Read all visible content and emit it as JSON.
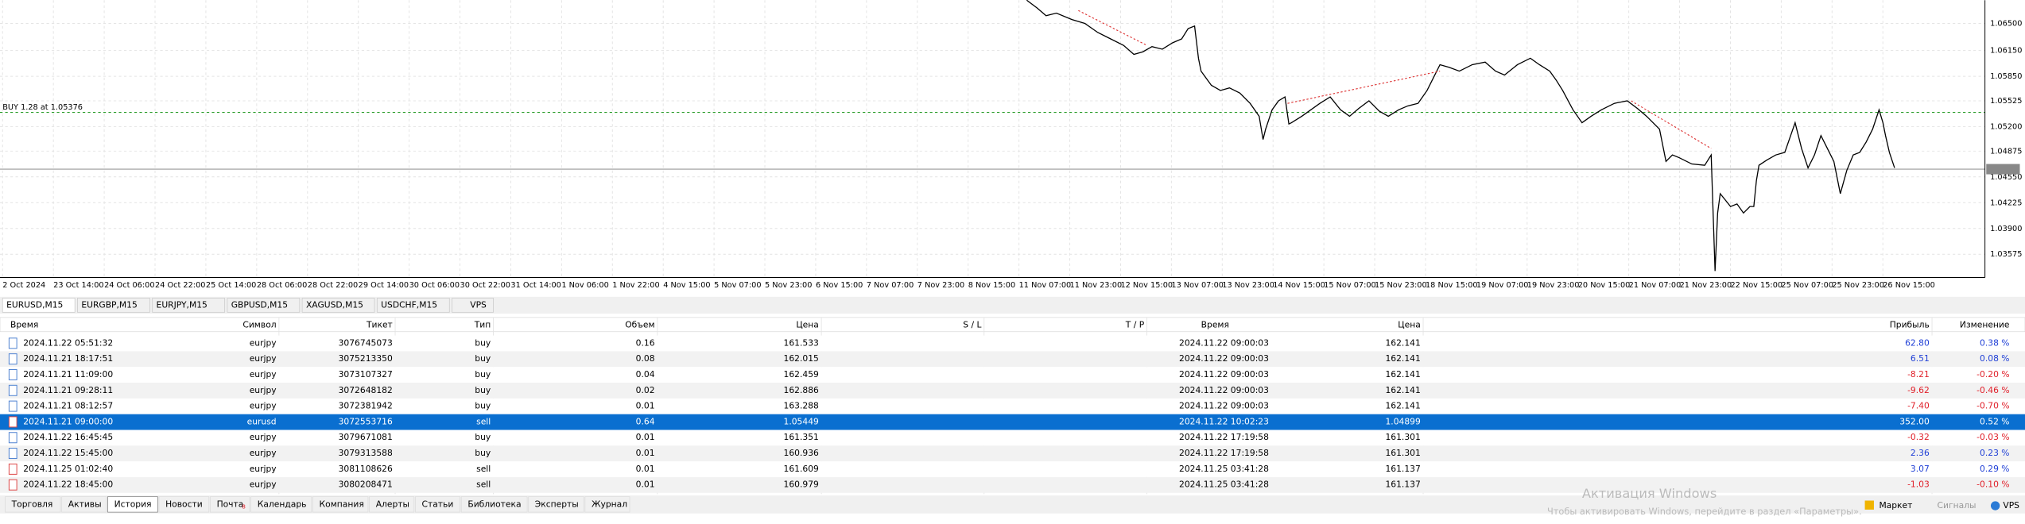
{
  "chart": {
    "info": "BUY 1.28 at 1.05376",
    "price_labels": [
      "1.06500",
      "1.06150",
      "1.05850",
      "1.05525",
      "1.05200",
      "1.04875",
      "1.04550",
      "1.04225",
      "1.03900",
      "1.03575"
    ],
    "time_labels": [
      "2 Oct 2024",
      "23 Oct 14:00",
      "24 Oct 06:00",
      "24 Oct 22:00",
      "25 Oct 14:00",
      "28 Oct 06:00",
      "28 Oct 22:00",
      "29 Oct 14:00",
      "30 Oct 06:00",
      "30 Oct 22:00",
      "31 Oct 14:00",
      "1 Nov 06:00",
      "1 Nov 22:00",
      "4 Nov 15:00",
      "5 Nov 07:00",
      "5 Nov 23:00",
      "6 Nov 15:00",
      "7 Nov 07:00",
      "7 Nov 23:00",
      "8 Nov 15:00",
      "11 Nov 07:00",
      "11 Nov 23:00",
      "12 Nov 15:00",
      "13 Nov 07:00",
      "13 Nov 23:00",
      "14 Nov 15:00",
      "15 Nov 07:00",
      "15 Nov 23:00",
      "18 Nov 15:00",
      "19 Nov 07:00",
      "19 Nov 23:00",
      "20 Nov 15:00",
      "21 Nov 07:00",
      "21 Nov 23:00",
      "22 Nov 15:00",
      "25 Nov 07:00",
      "25 Nov 23:00",
      "26 Nov 15:00"
    ]
  },
  "chart_tabs": [
    "EURUSD,M15",
    "EURGBP,M15",
    "EURJPY,M15",
    "GBPUSD,M15",
    "XAGUSD,M15",
    "USDCHF,M15",
    "VPS"
  ],
  "table": {
    "headers": [
      "Время",
      "Символ",
      "Тикет",
      "Тип",
      "Объем",
      "Цена",
      "S / L",
      "T / P",
      "Время",
      "Цена",
      "Прибыль",
      "Изменение"
    ],
    "rows": [
      [
        "2024.11.22 05:51:32",
        "eurjpy",
        "3076745073",
        "buy",
        "0.16",
        "161.533",
        "2024.11.22 09:00:03",
        "162.141",
        "62.80",
        "0.38 %"
      ],
      [
        "2024.11.21 18:17:51",
        "eurjpy",
        "3075213350",
        "buy",
        "0.08",
        "162.015",
        "2024.11.22 09:00:03",
        "162.141",
        "6.51",
        "0.08 %"
      ],
      [
        "2024.11.21 11:09:00",
        "eurjpy",
        "3073107327",
        "buy",
        "0.04",
        "162.459",
        "2024.11.22 09:00:03",
        "162.141",
        "-8.21",
        "-0.20 %"
      ],
      [
        "2024.11.21 09:28:11",
        "eurjpy",
        "3072648182",
        "buy",
        "0.02",
        "162.886",
        "2024.11.22 09:00:03",
        "162.141",
        "-9.62",
        "-0.46 %"
      ],
      [
        "2024.11.21 08:12:57",
        "eurjpy",
        "3072381942",
        "buy",
        "0.01",
        "163.288",
        "2024.11.22 09:00:03",
        "162.141",
        "-7.40",
        "-0.70 %"
      ],
      [
        "2024.11.21 09:00:00",
        "eurusd",
        "3072553716",
        "sell",
        "0.64",
        "1.05449",
        "2024.11.22 10:02:23",
        "1.04899",
        "352.00",
        "0.52 %"
      ],
      [
        "2024.11.22 16:45:45",
        "eurjpy",
        "3079671081",
        "buy",
        "0.01",
        "161.351",
        "2024.11.22 17:19:58",
        "161.301",
        "-0.32",
        "-0.03 %"
      ],
      [
        "2024.11.22 15:45:00",
        "eurjpy",
        "3079313588",
        "buy",
        "0.01",
        "160.936",
        "2024.11.22 17:19:58",
        "161.301",
        "2.36",
        "0.23 %"
      ],
      [
        "2024.11.25 01:02:40",
        "eurjpy",
        "3081108626",
        "sell",
        "0.01",
        "161.609",
        "2024.11.25 03:41:28",
        "161.137",
        "3.07",
        "0.29 %"
      ],
      [
        "2024.11.22 18:45:00",
        "eurjpy",
        "3080208471",
        "sell",
        "0.01",
        "160.979",
        "2024.11.25 03:41:28",
        "161.137",
        "-1.03",
        "-0.10 %"
      ]
    ]
  },
  "bottom_tabs": [
    "Торговля",
    "Активы",
    "История",
    "Новости",
    "Почта",
    "Календарь",
    "Компания",
    "Алерты",
    "Статьи",
    "Библиотека",
    "Эксперты",
    "Журнал"
  ],
  "mail_badge": "8",
  "status": {
    "market": "Маркет",
    "signals": "Сигналы",
    "vps": "VPS"
  },
  "watermark": {
    "title": "Активация Windows",
    "text": "Чтобы активировать Windows, перейдите в раздел «Параметры»."
  }
}
